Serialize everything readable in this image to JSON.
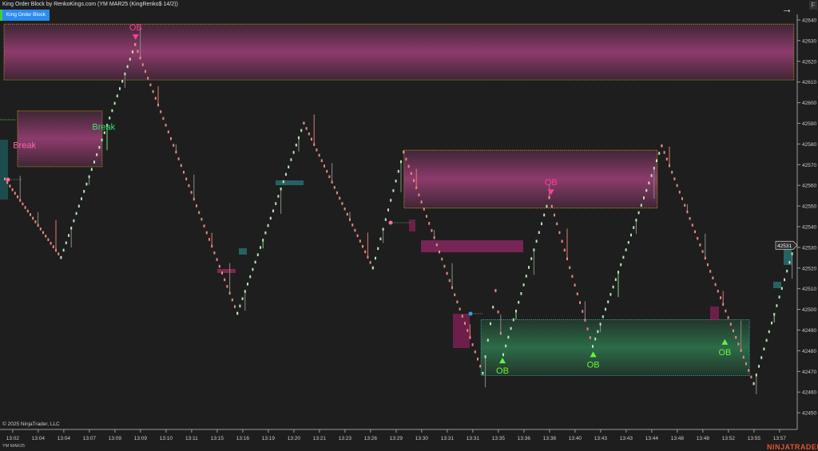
{
  "window": {
    "title": "King Order Block by RenkoKings.com (YM MAR25 (KingRenko$ 14/2))",
    "indicator_button": "King Order Block",
    "copyright": "© 2025 NinjaTrader, LLC",
    "instrument": "YM MAR25",
    "logo": "NINJATRADER",
    "f_button": "F",
    "arrow_icon": "arrow-right-icon"
  },
  "colors": {
    "background": "#1e1e1e",
    "bull_brick": "#b8e8b8",
    "bear_brick": "#e88a80",
    "bear_zone": "#a0407a",
    "bull_zone": "#2e7a50",
    "pink_label": "#ff3d9a",
    "green_label": "#6cf23a",
    "break_green": "#2ee86a"
  },
  "chart_data": {
    "type": "renko",
    "ylim": [
      42443,
      42642
    ],
    "yticks": [
      42640,
      42630,
      42620,
      42610,
      42600,
      42590,
      42580,
      42570,
      42560,
      42550,
      42540,
      42530,
      42520,
      42510,
      42500,
      42490,
      42480,
      42470,
      42460,
      42450
    ],
    "last_price": "42531",
    "xtick_labels": [
      "13:02",
      "13:04",
      "13:04",
      "13:07",
      "13:09",
      "13:09",
      "13:10",
      "13:11",
      "13:15",
      "13:16",
      "13:19",
      "13:20",
      "13:21",
      "13:23",
      "13:26",
      "13:29",
      "13:30",
      "13:31",
      "13:31",
      "13:35",
      "13:36",
      "13:38",
      "13:40",
      "13:43",
      "13:43",
      "13:44",
      "13:48",
      "13:48",
      "13:52",
      "13:55",
      "13:57"
    ],
    "pivots": [
      [
        0,
        42563
      ],
      [
        22,
        42525
      ],
      [
        51,
        42628
      ],
      [
        91,
        42498
      ],
      [
        117,
        42590
      ],
      [
        144,
        42520
      ],
      [
        156,
        42576
      ],
      [
        187,
        42469
      ],
      [
        192,
        42509
      ],
      [
        195,
        42478
      ],
      [
        213,
        42554
      ],
      [
        230,
        42482
      ],
      [
        257,
        42579
      ],
      [
        293,
        42464
      ],
      [
        309,
        42531
      ]
    ],
    "zones": [
      {
        "type": "bearish",
        "bars": [
          0,
          309
        ],
        "price": [
          42611,
          42638
        ]
      },
      {
        "type": "bearish",
        "bars": [
          5.3,
          38.4
        ],
        "price": [
          42569,
          42596
        ]
      },
      {
        "type": "bearish",
        "bars": [
          156.5,
          255.6
        ],
        "price": [
          42549,
          42577
        ]
      },
      {
        "type": "bullish",
        "bars": [
          186.6,
          291.6
        ],
        "price": [
          42468,
          42495
        ]
      }
    ],
    "labels": [
      {
        "text": "OB",
        "bar": 51.5,
        "price": 42635,
        "kind": "bear"
      },
      {
        "text": "Break",
        "bar": 8,
        "price": 42578,
        "kind": "break-bear"
      },
      {
        "text": "Break",
        "bar": 39,
        "price": 42587,
        "kind": "break-bull"
      },
      {
        "text": "OB",
        "bar": 214,
        "price": 42560,
        "kind": "bear"
      },
      {
        "text": "OB",
        "bar": 195,
        "price": 42477,
        "kind": "bull"
      },
      {
        "text": "OB",
        "bar": 230.5,
        "price": 42480,
        "kind": "bull"
      },
      {
        "text": "OB",
        "bar": 282,
        "price": 42486,
        "kind": "bull"
      }
    ]
  }
}
